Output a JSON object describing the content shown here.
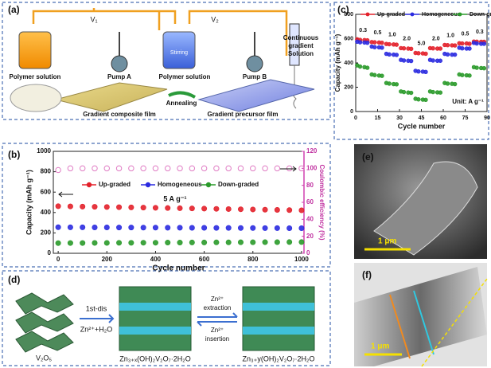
{
  "panel_a": {
    "label": "(a)",
    "v1": "V₁",
    "v2": "V₂",
    "solution_left": "Polymer solution",
    "pump_a": "Pump A",
    "solution_mid": "Polymer solution",
    "stirring": "Stirring",
    "pump_b": "Pump B",
    "continuous": [
      "Continuous",
      "gradient",
      "Solution"
    ],
    "annealing": "Annealing",
    "composite_film": "Gradient composite film",
    "precursor_film": "Gradient precursor film"
  },
  "chart_data": [
    {
      "type": "scatter",
      "panel_label": "(b)",
      "x_label": "Cycle number",
      "y_label": "Capacity (mAh g⁻¹)",
      "y2_label": "Coulombic efficiency (%)",
      "annotation": "5 A g⁻¹",
      "xlim": [
        -20,
        1010
      ],
      "xticks": [
        0,
        200,
        400,
        600,
        800,
        1000
      ],
      "ylim": [
        0,
        1000
      ],
      "yticks": [
        0,
        200,
        400,
        600,
        800,
        1000
      ],
      "y2lim": [
        0,
        120
      ],
      "y2ticks": [
        0,
        20,
        40,
        60,
        80,
        100,
        120
      ],
      "x": [
        0,
        50,
        100,
        150,
        200,
        250,
        300,
        350,
        400,
        450,
        500,
        550,
        600,
        650,
        700,
        750,
        800,
        850,
        900,
        950,
        1000
      ],
      "series": [
        {
          "name": "Up-graded",
          "color": "#e3202a",
          "values": [
            462,
            460,
            458,
            456,
            454,
            452,
            450,
            448,
            446,
            444,
            442,
            440,
            438,
            436,
            434,
            432,
            430,
            428,
            426,
            424,
            422
          ]
        },
        {
          "name": "Homogeneous",
          "color": "#2b2be0",
          "values": [
            256,
            255,
            255,
            254,
            254,
            253,
            253,
            252,
            252,
            251,
            251,
            250,
            250,
            249,
            249,
            248,
            248,
            247,
            247,
            246,
            246
          ]
        },
        {
          "name": "Down-graded",
          "color": "#2a9a2a",
          "values": [
            100,
            101,
            101,
            102,
            102,
            103,
            103,
            104,
            104,
            105,
            105,
            106,
            106,
            107,
            107,
            108,
            108,
            109,
            109,
            110,
            110
          ]
        },
        {
          "name": null,
          "color": "#e07cc4",
          "axis": "y2",
          "filled": false,
          "values": [
            98,
            100,
            100,
            100,
            100,
            100,
            100,
            100,
            100,
            100,
            100,
            100,
            100,
            100,
            100,
            100,
            100,
            100,
            100,
            100,
            100
          ]
        }
      ]
    },
    {
      "type": "scatter",
      "panel_label": "(c)",
      "x_label": "Cycle number",
      "y_label": "Capacity (mAh g⁻¹)",
      "annotation": "Unit: A g⁻¹",
      "rate_labels": [
        "0.3",
        "0.5",
        "1.0",
        "2.0",
        "5.0",
        "2.0",
        "1.0",
        "0.5",
        "0.3"
      ],
      "xlim": [
        0,
        90
      ],
      "xticks": [
        0,
        15,
        30,
        45,
        60,
        75,
        90
      ],
      "ylim": [
        0,
        800
      ],
      "yticks": [
        0,
        200,
        400,
        600,
        800
      ],
      "x": [
        1,
        3,
        6,
        8,
        11,
        13,
        16,
        18,
        21,
        23,
        26,
        28,
        31,
        33,
        36,
        38,
        41,
        43,
        46,
        48,
        51,
        53,
        56,
        58,
        61,
        63,
        66,
        68,
        71,
        73,
        76,
        78,
        81,
        83,
        86,
        88
      ],
      "series": [
        {
          "name": "Up-graded",
          "color": "#e3202a",
          "values": [
            595,
            590,
            588,
            586,
            572,
            570,
            568,
            566,
            556,
            554,
            552,
            550,
            522,
            520,
            518,
            516,
            482,
            480,
            478,
            476,
            522,
            520,
            518,
            518,
            548,
            546,
            545,
            544,
            562,
            560,
            560,
            558,
            576,
            575,
            574,
            574
          ]
        },
        {
          "name": "Homogeneous",
          "color": "#2b2be0",
          "values": [
            575,
            570,
            568,
            566,
            535,
            530,
            528,
            526,
            475,
            470,
            468,
            466,
            425,
            420,
            418,
            416,
            335,
            330,
            328,
            326,
            425,
            420,
            418,
            418,
            475,
            470,
            468,
            468,
            525,
            520,
            518,
            518,
            565,
            560,
            558,
            558
          ]
        },
        {
          "name": "Down-graded",
          "color": "#2a9a2a",
          "values": [
            380,
            370,
            365,
            360,
            305,
            300,
            296,
            294,
            235,
            230,
            226,
            224,
            165,
            160,
            156,
            154,
            105,
            100,
            98,
            96,
            165,
            160,
            158,
            156,
            235,
            230,
            228,
            226,
            305,
            300,
            298,
            296,
            365,
            360,
            358,
            356
          ]
        }
      ]
    }
  ],
  "panel_d": {
    "label": "(d)",
    "v2o5": "V₂O₅",
    "first_dis": "1st-dis",
    "zn_water": "Zn²⁺+H₂O",
    "phase_x": "Zn₃₊ₓ(OH)₂V₂O₇·2H₂O",
    "extraction": [
      "Zn²⁺",
      "extraction"
    ],
    "insertion": [
      "Zn²⁺",
      "insertion"
    ],
    "phase_y": "Zn₃₊y(OH)₂V₂O₇·2H₂O"
  },
  "panel_e": {
    "label": "(e)",
    "scale": "1 μm"
  },
  "panel_f": {
    "label": "(f)",
    "scale": "1 μm"
  }
}
